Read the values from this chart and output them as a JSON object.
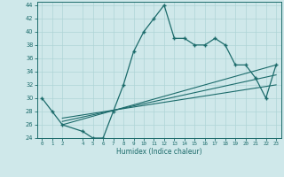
{
  "xlabel": "Humidex (Indice chaleur)",
  "bg_color": "#cfe8ea",
  "line_color": "#1c6b6b",
  "grid_color": "#afd4d6",
  "xlim": [
    -0.5,
    23.5
  ],
  "ylim": [
    24,
    44.5
  ],
  "xticks": [
    0,
    1,
    2,
    4,
    5,
    6,
    7,
    8,
    9,
    10,
    11,
    12,
    13,
    14,
    15,
    16,
    17,
    18,
    19,
    20,
    21,
    22,
    23
  ],
  "yticks": [
    24,
    26,
    28,
    30,
    32,
    34,
    36,
    38,
    40,
    42,
    44
  ],
  "main_x": [
    0,
    1,
    2,
    4,
    5,
    6,
    7,
    8,
    9,
    10,
    11,
    12,
    13,
    14,
    15,
    16,
    17,
    18,
    19,
    20,
    21,
    22,
    23
  ],
  "main_y": [
    30,
    28,
    26,
    25,
    24,
    24,
    28,
    32,
    37,
    40,
    42,
    44,
    39,
    39,
    38,
    38,
    39,
    38,
    35,
    35,
    33,
    30,
    35
  ],
  "line2_x": [
    2,
    23
  ],
  "line2_y": [
    26,
    35
  ],
  "line3_x": [
    2,
    23
  ],
  "line3_y": [
    26.5,
    33.5
  ],
  "line4_x": [
    2,
    23
  ],
  "line4_y": [
    27,
    32
  ]
}
